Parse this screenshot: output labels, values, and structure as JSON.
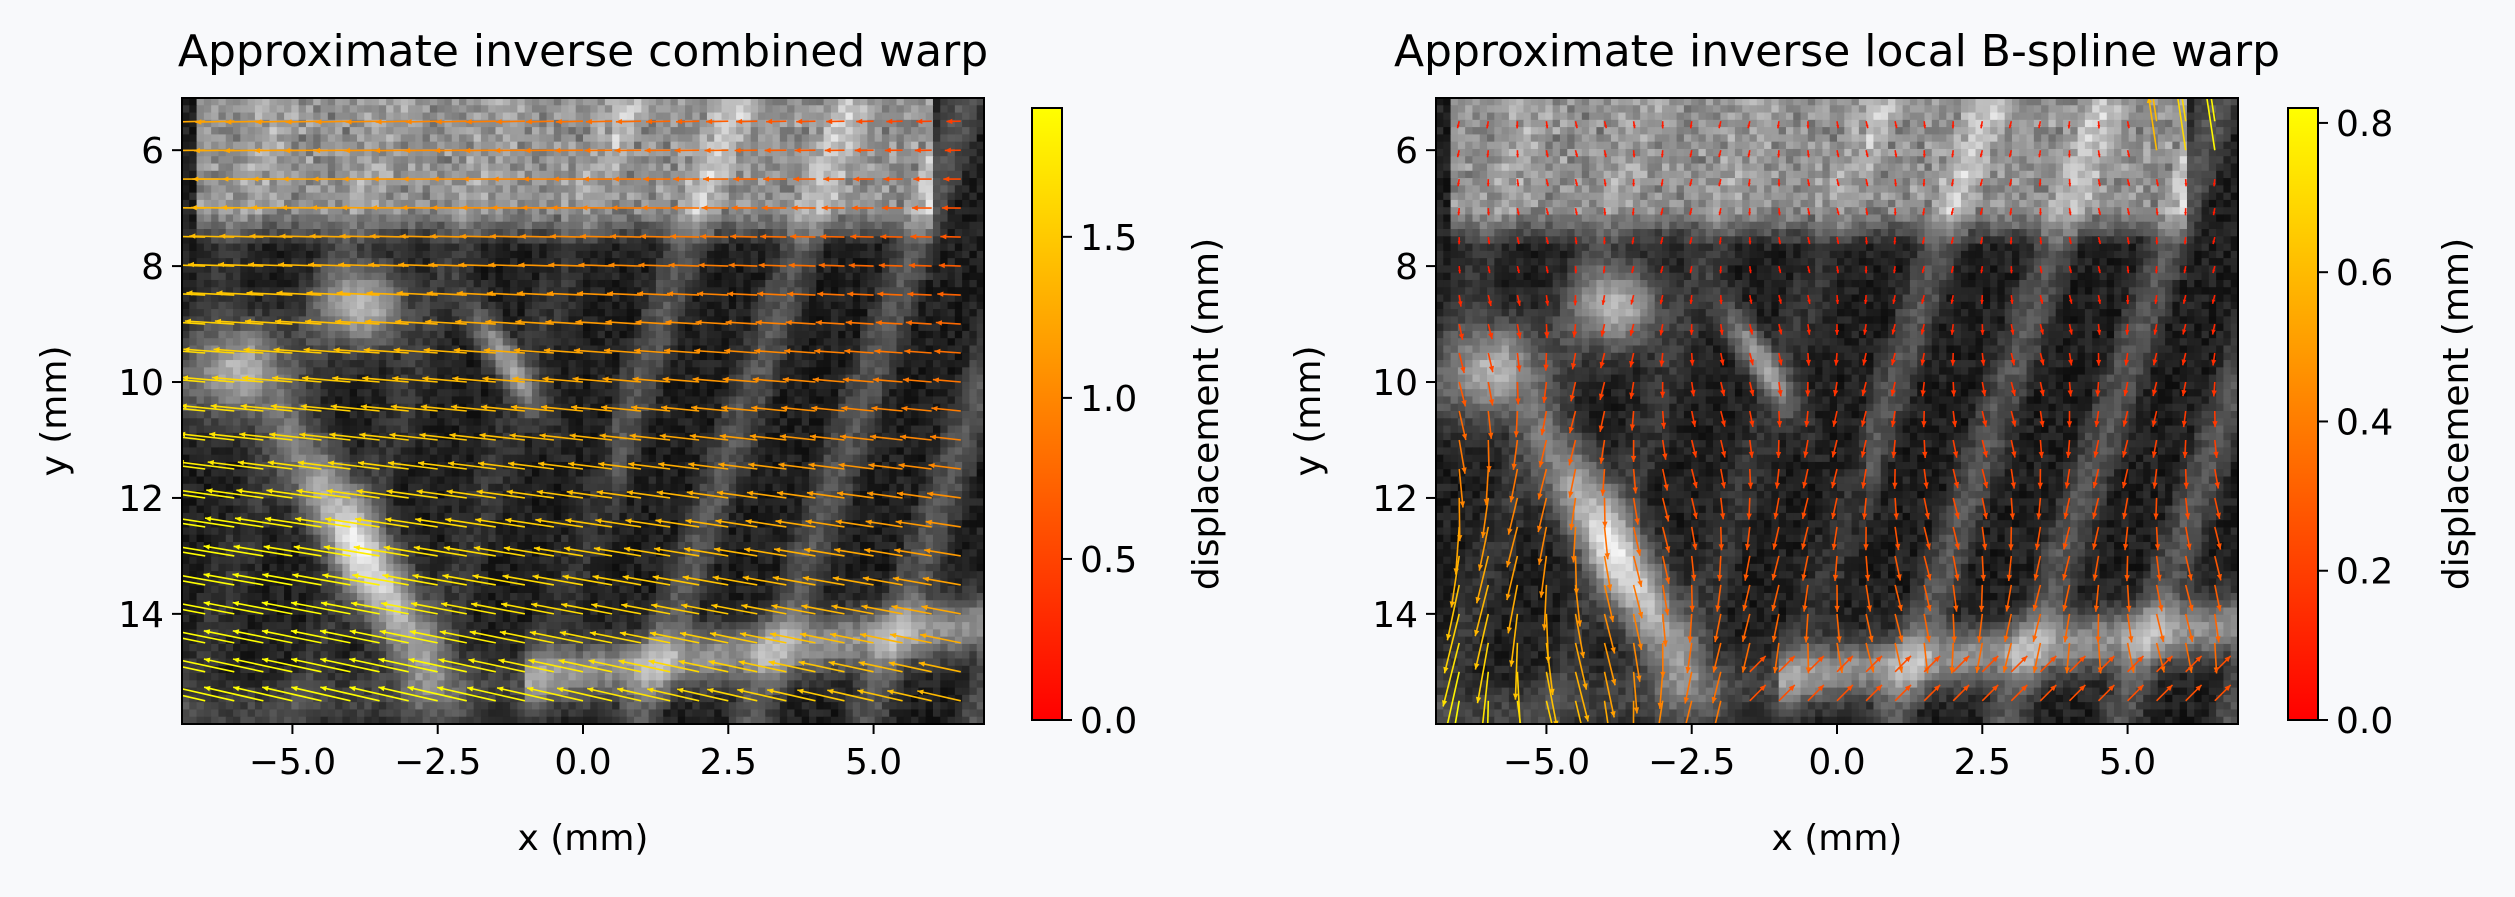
{
  "chart_data": [
    {
      "type": "heatmap",
      "title": "Approximate inverse combined warp",
      "xlabel": "x (mm)",
      "ylabel": "y (mm)",
      "xlim": [
        -6.9,
        6.9
      ],
      "ylim": [
        15.9,
        5.1
      ],
      "x_ticks": [
        -5.0,
        -2.5,
        0.0,
        2.5,
        5.0
      ],
      "x_tick_labels": [
        "−5.0",
        "−2.5",
        "0.0",
        "2.5",
        "5.0"
      ],
      "y_ticks": [
        6,
        8,
        10,
        12,
        14
      ],
      "y_tick_labels": [
        "6",
        "8",
        "10",
        "12",
        "14"
      ],
      "colorbar": {
        "label": "displacement (mm)",
        "range": [
          0.0,
          1.9
        ],
        "ticks": [
          0.0,
          0.5,
          1.0,
          1.5
        ],
        "tick_labels": [
          "0.0",
          "0.5",
          "1.0",
          "1.5"
        ],
        "colormap": [
          "#ff0000",
          "#ff8000",
          "#ffff00"
        ]
      },
      "quiver": {
        "field": "combined",
        "x_start": -6.5,
        "x_step": 0.5,
        "nx": 27,
        "y_start": 5.5,
        "y_step": 0.5,
        "ny": 21,
        "description": "predominantly leftward arrows; magnitude increases toward the lower-left (max ~1.9 mm)",
        "max_magnitude": 1.9
      },
      "background": "grayscale ultrasound image"
    },
    {
      "type": "heatmap",
      "title": "Approximate inverse local B-spline warp",
      "xlabel": "x (mm)",
      "ylabel": "y (mm)",
      "xlim": [
        -6.9,
        6.9
      ],
      "ylim": [
        15.9,
        5.1
      ],
      "x_ticks": [
        -5.0,
        -2.5,
        0.0,
        2.5,
        5.0
      ],
      "x_tick_labels": [
        "−5.0",
        "−2.5",
        "0.0",
        "2.5",
        "5.0"
      ],
      "y_ticks": [
        6,
        8,
        10,
        12,
        14
      ],
      "y_tick_labels": [
        "6",
        "8",
        "10",
        "12",
        "14"
      ],
      "colorbar": {
        "label": "displacement (mm)",
        "range": [
          0.0,
          0.82
        ],
        "ticks": [
          0.0,
          0.2,
          0.4,
          0.6,
          0.8
        ],
        "tick_labels": [
          "0.0",
          "0.2",
          "0.4",
          "0.6",
          "0.8"
        ],
        "colormap": [
          "#ff0000",
          "#ff8000",
          "#ffff00"
        ]
      },
      "quiver": {
        "field": "local",
        "x_start": -6.5,
        "x_step": 0.5,
        "nx": 27,
        "y_start": 5.5,
        "y_step": 0.5,
        "ny": 21,
        "description": "mostly small downward arrows, larger toward lower-left and top-right corner (max ~0.82 mm)",
        "max_magnitude": 0.82
      },
      "background": "grayscale ultrasound image"
    }
  ]
}
